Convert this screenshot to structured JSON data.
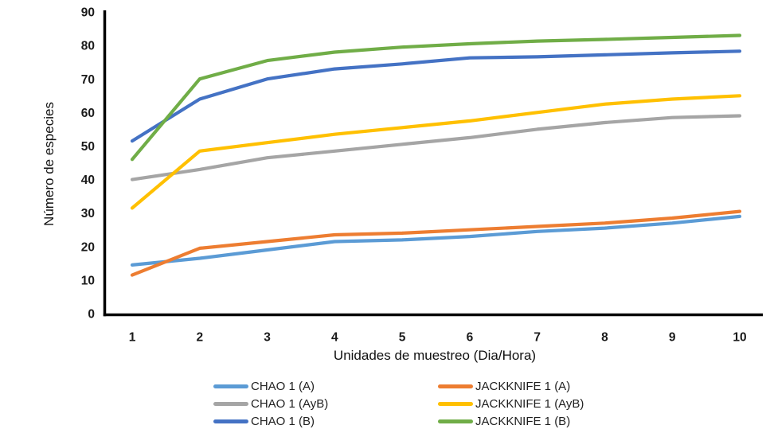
{
  "chart_data": {
    "type": "line",
    "title": "",
    "xlabel": "Unidades de muestreo (Dia/Hora)",
    "ylabel": "Número de especies",
    "x": [
      1,
      2,
      3,
      4,
      5,
      6,
      7,
      8,
      9,
      10
    ],
    "xticks": [
      1,
      2,
      3,
      4,
      5,
      6,
      7,
      8,
      9,
      10
    ],
    "yticks": [
      0,
      10,
      20,
      30,
      40,
      50,
      60,
      70,
      80,
      90
    ],
    "ylim": [
      0,
      90
    ],
    "grid": false,
    "legend_position": "bottom-two-columns",
    "axis_color": "#000000",
    "series": [
      {
        "name": "CHAO 1 (A)",
        "color": "#5B9BD5",
        "values": [
          14.5,
          16.5,
          19,
          21.5,
          22,
          23,
          24.5,
          25.5,
          27,
          29
        ]
      },
      {
        "name": "JACKKNIFE 1 (A)",
        "color": "#ED7D31",
        "values": [
          11.5,
          19.5,
          21.5,
          23.5,
          24,
          25,
          26,
          27,
          28.5,
          30.5
        ]
      },
      {
        "name": "CHAO 1 (AyB)",
        "color": "#A5A5A5",
        "values": [
          40,
          43,
          46.5,
          48.5,
          50.5,
          52.5,
          55,
          57,
          58.5,
          59
        ]
      },
      {
        "name": "JACKKNIFE 1 (AyB)",
        "color": "#FFC000",
        "values": [
          31.5,
          48.5,
          51,
          53.5,
          55.5,
          57.5,
          60,
          62.5,
          64,
          65
        ]
      },
      {
        "name": "CHAO 1 (B)",
        "color": "#4472C4",
        "values": [
          51.5,
          64,
          70,
          73,
          74.5,
          76.3,
          76.6,
          77.2,
          77.8,
          78.3
        ]
      },
      {
        "name": "JACKKNIFE 1 (B)",
        "color": "#70AD47",
        "values": [
          46,
          70,
          75.5,
          78,
          79.5,
          80.5,
          81.3,
          81.8,
          82.4,
          83
        ]
      }
    ]
  }
}
